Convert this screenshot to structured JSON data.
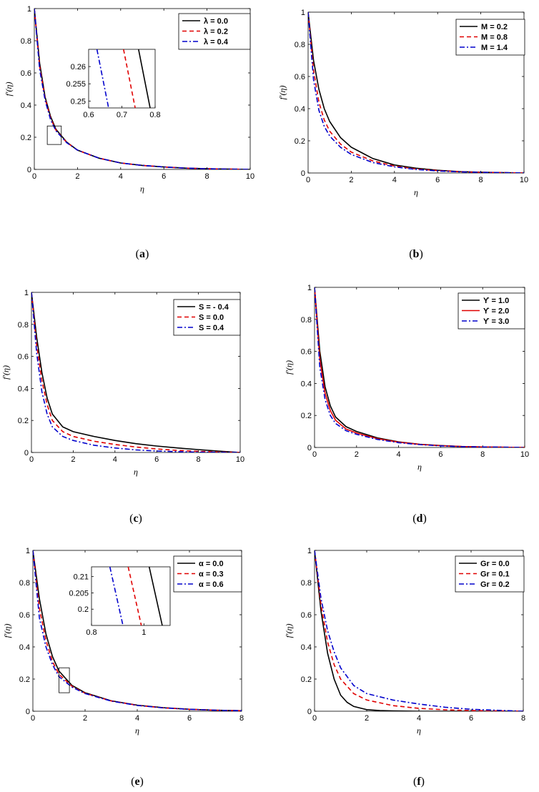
{
  "chart_data": [
    {
      "id": "a",
      "type": "line",
      "caption_letter": "a",
      "xlabel": "η",
      "ylabel": "f′(η)",
      "xlim": [
        0,
        10
      ],
      "ylim": [
        0,
        1
      ],
      "xticks": [
        0,
        2,
        4,
        6,
        8,
        10
      ],
      "xtick_labels": [
        "0",
        "2",
        "4",
        "6",
        "8",
        "10"
      ],
      "yticks": [
        0,
        0.2,
        0.4,
        0.6,
        0.8,
        1
      ],
      "ytick_labels": [
        "0",
        "0.2",
        "0.4",
        "0.6",
        "0.8",
        "1"
      ],
      "legend": {
        "position": "top-right"
      },
      "series": [
        {
          "name": "λ = 0.0",
          "color": "#000000",
          "dash": "solid",
          "x": [
            0,
            0.25,
            0.5,
            0.75,
            1,
            1.5,
            2,
            3,
            4,
            5,
            6,
            7,
            8,
            10
          ],
          "y": [
            1,
            0.66,
            0.45,
            0.33,
            0.25,
            0.17,
            0.12,
            0.07,
            0.04,
            0.025,
            0.015,
            0.008,
            0.004,
            0
          ]
        },
        {
          "name": "λ = 0.2",
          "color": "#e00000",
          "dash": "dashed",
          "x": [
            0,
            0.25,
            0.5,
            0.75,
            1,
            1.5,
            2,
            3,
            4,
            5,
            6,
            7,
            8,
            10
          ],
          "y": [
            1,
            0.64,
            0.44,
            0.32,
            0.245,
            0.168,
            0.12,
            0.07,
            0.04,
            0.025,
            0.015,
            0.008,
            0.004,
            0
          ]
        },
        {
          "name": "λ = 0.4",
          "color": "#0000cc",
          "dash": "dashdot",
          "x": [
            0,
            0.25,
            0.5,
            0.75,
            1,
            1.5,
            2,
            3,
            4,
            5,
            6,
            7,
            8,
            10
          ],
          "y": [
            1,
            0.62,
            0.43,
            0.31,
            0.24,
            0.166,
            0.12,
            0.07,
            0.04,
            0.025,
            0.015,
            0.008,
            0.004,
            0
          ]
        }
      ],
      "highlight_box": {
        "x": [
          0.6,
          1.25
        ],
        "y": [
          0.155,
          0.27
        ]
      },
      "inset": {
        "xlim": [
          0.6,
          0.8
        ],
        "ylim": [
          0.248,
          0.265
        ],
        "xticks": [
          0.6,
          0.7,
          0.8
        ],
        "xtick_labels": [
          "0.6",
          "0.7",
          "0.8"
        ],
        "yticks": [
          0.25,
          0.255,
          0.26
        ],
        "ytick_labels": [
          "0.25",
          "0.255",
          "0.26"
        ],
        "series": [
          {
            "color": "#000000",
            "dash": "solid",
            "x": [
              0.75,
              0.785
            ],
            "y": [
              0.265,
              0.248
            ]
          },
          {
            "color": "#e00000",
            "dash": "dashed",
            "x": [
              0.705,
              0.74
            ],
            "y": [
              0.265,
              0.248
            ]
          },
          {
            "color": "#0000cc",
            "dash": "dashdot",
            "x": [
              0.625,
              0.66
            ],
            "y": [
              0.265,
              0.248
            ]
          }
        ]
      }
    },
    {
      "id": "b",
      "type": "line",
      "caption_letter": "b",
      "xlabel": "η",
      "ylabel": "f′(η)",
      "xlim": [
        0,
        10
      ],
      "ylim": [
        0,
        1
      ],
      "xticks": [
        0,
        2,
        4,
        6,
        8,
        10
      ],
      "xtick_labels": [
        "0",
        "2",
        "4",
        "6",
        "8",
        "10"
      ],
      "yticks": [
        0,
        0.2,
        0.4,
        0.6,
        0.8,
        1
      ],
      "ytick_labels": [
        "0",
        "0.2",
        "0.4",
        "0.6",
        "0.8",
        "1"
      ],
      "legend": {
        "position": "top-right"
      },
      "series": [
        {
          "name": "M = 0.2",
          "color": "#000000",
          "dash": "solid",
          "x": [
            0,
            0.25,
            0.5,
            0.75,
            1,
            1.5,
            2,
            3,
            4,
            5,
            6,
            7,
            8,
            10
          ],
          "y": [
            1,
            0.7,
            0.52,
            0.4,
            0.32,
            0.22,
            0.16,
            0.09,
            0.05,
            0.03,
            0.017,
            0.009,
            0.005,
            0
          ]
        },
        {
          "name": "M = 0.8",
          "color": "#e00000",
          "dash": "dashed",
          "x": [
            0,
            0.25,
            0.5,
            0.75,
            1,
            1.5,
            2,
            3,
            4,
            5,
            6,
            7,
            8,
            10
          ],
          "y": [
            1,
            0.64,
            0.44,
            0.33,
            0.26,
            0.18,
            0.13,
            0.075,
            0.043,
            0.025,
            0.015,
            0.008,
            0.004,
            0
          ]
        },
        {
          "name": "M = 1.4",
          "color": "#0000cc",
          "dash": "dashdot",
          "x": [
            0,
            0.25,
            0.5,
            0.75,
            1,
            1.5,
            2,
            3,
            4,
            5,
            6,
            7,
            8,
            10
          ],
          "y": [
            1,
            0.58,
            0.39,
            0.29,
            0.23,
            0.16,
            0.115,
            0.065,
            0.038,
            0.022,
            0.013,
            0.007,
            0.004,
            0
          ]
        }
      ]
    },
    {
      "id": "c",
      "type": "line",
      "caption_letter": "c",
      "xlabel": "η",
      "ylabel": "f′(η)",
      "xlim": [
        0,
        10
      ],
      "ylim": [
        0,
        1
      ],
      "xticks": [
        0,
        2,
        4,
        6,
        8,
        10
      ],
      "xtick_labels": [
        "0",
        "2",
        "4",
        "6",
        "8",
        "10"
      ],
      "yticks": [
        0,
        0.2,
        0.4,
        0.6,
        0.8,
        1
      ],
      "ytick_labels": [
        "0",
        "0.2",
        "0.4",
        "0.6",
        "0.8",
        "1"
      ],
      "legend": {
        "position": "top-right"
      },
      "series": [
        {
          "name": "S = - 0.4",
          "color": "#000000",
          "dash": "solid",
          "x": [
            0,
            0.25,
            0.5,
            0.75,
            1,
            1.5,
            2,
            3,
            4,
            5,
            6,
            7,
            8,
            9,
            10
          ],
          "y": [
            1,
            0.72,
            0.5,
            0.34,
            0.24,
            0.16,
            0.13,
            0.1,
            0.075,
            0.055,
            0.04,
            0.028,
            0.018,
            0.008,
            0
          ]
        },
        {
          "name": "S =   0.0",
          "color": "#e00000",
          "dash": "dashed",
          "x": [
            0,
            0.25,
            0.5,
            0.75,
            1,
            1.5,
            2,
            3,
            4,
            5,
            6,
            7,
            8,
            9,
            10
          ],
          "y": [
            1,
            0.67,
            0.45,
            0.3,
            0.2,
            0.13,
            0.1,
            0.07,
            0.05,
            0.034,
            0.022,
            0.013,
            0.007,
            0.003,
            0
          ]
        },
        {
          "name": "S =   0.4",
          "color": "#0000cc",
          "dash": "dashdot",
          "x": [
            0,
            0.25,
            0.5,
            0.75,
            1,
            1.5,
            2,
            3,
            4,
            5,
            6,
            7,
            8,
            9,
            10
          ],
          "y": [
            1,
            0.62,
            0.38,
            0.24,
            0.16,
            0.1,
            0.075,
            0.045,
            0.028,
            0.016,
            0.009,
            0.005,
            0.002,
            0.001,
            0
          ]
        }
      ]
    },
    {
      "id": "d",
      "type": "line",
      "caption_letter": "d",
      "xlabel": "η",
      "ylabel": "f′(η)",
      "xlim": [
        0,
        10
      ],
      "ylim": [
        0,
        1
      ],
      "xticks": [
        0,
        2,
        4,
        6,
        8,
        10
      ],
      "xtick_labels": [
        "0",
        "2",
        "4",
        "6",
        "8",
        "10"
      ],
      "yticks": [
        0,
        0.2,
        0.4,
        0.6,
        0.8,
        1
      ],
      "ytick_labels": [
        "0",
        "0.2",
        "0.4",
        "0.6",
        "0.8",
        "1"
      ],
      "legend": {
        "position": "top-right"
      },
      "series": [
        {
          "name": "ϒ = 1.0",
          "color": "#000000",
          "dash": "solid",
          "x": [
            0,
            0.25,
            0.5,
            0.75,
            1,
            1.5,
            2,
            3,
            4,
            5,
            6,
            7,
            8,
            10
          ],
          "y": [
            1,
            0.6,
            0.38,
            0.26,
            0.19,
            0.13,
            0.1,
            0.06,
            0.035,
            0.02,
            0.012,
            0.006,
            0.003,
            0
          ]
        },
        {
          "name": "ϒ = 2.0",
          "color": "#e00000",
          "dash": "solid",
          "x": [
            0,
            0.25,
            0.5,
            0.75,
            1,
            1.5,
            2,
            3,
            4,
            5,
            6,
            7,
            8,
            10
          ],
          "y": [
            1,
            0.55,
            0.34,
            0.23,
            0.17,
            0.115,
            0.09,
            0.055,
            0.033,
            0.019,
            0.011,
            0.006,
            0.003,
            0
          ]
        },
        {
          "name": "ϒ = 3.0",
          "color": "#0000cc",
          "dash": "dashdot",
          "x": [
            0,
            0.25,
            0.5,
            0.75,
            1,
            1.5,
            2,
            3,
            4,
            5,
            6,
            7,
            8,
            10
          ],
          "y": [
            1,
            0.5,
            0.3,
            0.2,
            0.15,
            0.105,
            0.082,
            0.05,
            0.03,
            0.018,
            0.01,
            0.005,
            0.003,
            0
          ]
        }
      ]
    },
    {
      "id": "e",
      "type": "line",
      "caption_letter": "e",
      "xlabel": "η",
      "ylabel": "f′(η)",
      "xlim": [
        0,
        8
      ],
      "ylim": [
        0,
        1
      ],
      "xticks": [
        0,
        2,
        4,
        6,
        8
      ],
      "xtick_labels": [
        "0",
        "2",
        "4",
        "6",
        "8"
      ],
      "yticks": [
        0,
        0.2,
        0.4,
        0.6,
        0.8,
        1
      ],
      "ytick_labels": [
        "0",
        "0.2",
        "0.4",
        "0.6",
        "0.8",
        "1"
      ],
      "legend": {
        "position": "top-right"
      },
      "series": [
        {
          "name": "α = 0.0",
          "color": "#000000",
          "dash": "solid",
          "x": [
            0,
            0.25,
            0.5,
            0.75,
            1,
            1.5,
            2,
            3,
            4,
            5,
            6,
            7,
            8
          ],
          "y": [
            1,
            0.7,
            0.48,
            0.34,
            0.25,
            0.16,
            0.115,
            0.065,
            0.038,
            0.022,
            0.012,
            0.006,
            0.003
          ]
        },
        {
          "name": "α = 0.3",
          "color": "#e00000",
          "dash": "dashed",
          "x": [
            0,
            0.25,
            0.5,
            0.75,
            1,
            1.5,
            2,
            3,
            4,
            5,
            6,
            7,
            8
          ],
          "y": [
            1,
            0.64,
            0.44,
            0.31,
            0.23,
            0.155,
            0.112,
            0.064,
            0.037,
            0.021,
            0.012,
            0.006,
            0.003
          ]
        },
        {
          "name": "α = 0.6",
          "color": "#0000cc",
          "dash": "dashdot",
          "x": [
            0,
            0.25,
            0.5,
            0.75,
            1,
            1.5,
            2,
            3,
            4,
            5,
            6,
            7,
            8
          ],
          "y": [
            1,
            0.58,
            0.4,
            0.29,
            0.215,
            0.15,
            0.11,
            0.063,
            0.036,
            0.021,
            0.012,
            0.006,
            0.003
          ]
        }
      ],
      "highlight_box": {
        "x": [
          1.0,
          1.4
        ],
        "y": [
          0.115,
          0.27
        ]
      },
      "inset": {
        "xlim": [
          0.8,
          1.1
        ],
        "ylim": [
          0.195,
          0.213
        ],
        "xticks": [
          0.8,
          1
        ],
        "xtick_labels": [
          "0.8",
          "1"
        ],
        "yticks": [
          0.2,
          0.205,
          0.21
        ],
        "ytick_labels": [
          "0.2",
          "0.205",
          "0.21"
        ],
        "series": [
          {
            "color": "#000000",
            "dash": "solid",
            "x": [
              1.02,
              1.07
            ],
            "y": [
              0.213,
              0.195
            ]
          },
          {
            "color": "#e00000",
            "dash": "dashed",
            "x": [
              0.94,
              0.99
            ],
            "y": [
              0.213,
              0.195
            ]
          },
          {
            "color": "#0000cc",
            "dash": "dashdot",
            "x": [
              0.87,
              0.92
            ],
            "y": [
              0.213,
              0.195
            ]
          }
        ]
      }
    },
    {
      "id": "f",
      "type": "line",
      "caption_letter": "f",
      "xlabel": "η",
      "ylabel": "f′(η)",
      "xlim": [
        0,
        8
      ],
      "ylim": [
        0,
        1
      ],
      "xticks": [
        0,
        2,
        4,
        6,
        8
      ],
      "xtick_labels": [
        "0",
        "2",
        "4",
        "6",
        "8"
      ],
      "yticks": [
        0,
        0.2,
        0.4,
        0.6,
        0.8,
        1
      ],
      "ytick_labels": [
        "0",
        "0.2",
        "0.4",
        "0.6",
        "0.8",
        "1"
      ],
      "legend": {
        "position": "top-right"
      },
      "series": [
        {
          "name": "Gr = 0.0",
          "color": "#000000",
          "dash": "solid",
          "x": [
            0,
            0.25,
            0.5,
            0.75,
            1,
            1.25,
            1.5,
            2,
            2.5,
            3,
            4,
            5,
            6,
            8
          ],
          "y": [
            1,
            0.62,
            0.36,
            0.2,
            0.1,
            0.055,
            0.03,
            0.01,
            0.004,
            0.002,
            0,
            0,
            0,
            0
          ]
        },
        {
          "name": "Gr = 0.1",
          "color": "#e00000",
          "dash": "dashed",
          "x": [
            0,
            0.25,
            0.5,
            0.75,
            1,
            1.5,
            2,
            3,
            4,
            5,
            6,
            8
          ],
          "y": [
            1,
            0.66,
            0.43,
            0.29,
            0.2,
            0.11,
            0.07,
            0.035,
            0.018,
            0.009,
            0.004,
            0
          ]
        },
        {
          "name": "Gr = 0.2",
          "color": "#0000cc",
          "dash": "dashdot",
          "x": [
            0,
            0.25,
            0.5,
            0.75,
            1,
            1.5,
            2,
            3,
            4,
            5,
            6,
            8
          ],
          "y": [
            1,
            0.7,
            0.5,
            0.37,
            0.27,
            0.16,
            0.11,
            0.07,
            0.045,
            0.025,
            0.012,
            0
          ]
        }
      ]
    }
  ]
}
